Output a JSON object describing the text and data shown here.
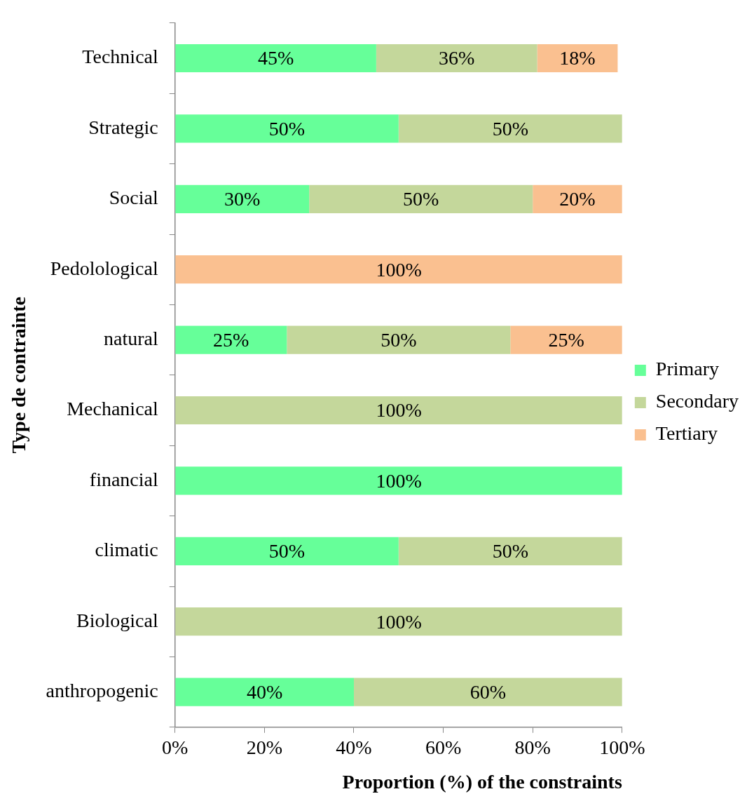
{
  "chart_data": {
    "type": "bar",
    "orientation": "horizontal",
    "stacked": true,
    "xlabel": "Proportion (%) of the constraints",
    "ylabel": "Type de contrainte",
    "categories": [
      "Technical",
      "Strategic",
      "Social",
      "Pedolological",
      "natural",
      "Mechanical",
      "financial",
      "climatic",
      "Biological",
      "anthropogenic"
    ],
    "series": [
      {
        "name": "Primary",
        "color": "#66ff99",
        "values": [
          45,
          50,
          30,
          null,
          25,
          null,
          100,
          50,
          null,
          40
        ],
        "value_labels": [
          "45%",
          "50%",
          "30%",
          null,
          "25%",
          null,
          "100%",
          "50%",
          null,
          "40%"
        ]
      },
      {
        "name": "Secondary",
        "color": "#c4d79b",
        "values": [
          36,
          50,
          50,
          null,
          50,
          100,
          null,
          50,
          100,
          60
        ],
        "value_labels": [
          "36%",
          "50%",
          "50%",
          null,
          "50%",
          "100%",
          null,
          "50%",
          "100%",
          "60%"
        ]
      },
      {
        "name": "Tertiary",
        "color": "#fac090",
        "values": [
          18,
          null,
          20,
          100,
          25,
          null,
          null,
          null,
          null,
          null
        ],
        "value_labels": [
          "18%",
          null,
          "20%",
          "100%",
          "25%",
          null,
          null,
          null,
          null,
          null
        ]
      }
    ],
    "xlim": [
      0,
      100
    ],
    "xticks": [
      {
        "value": 0,
        "label": "0%"
      },
      {
        "value": 20,
        "label": "20%"
      },
      {
        "value": 40,
        "label": "40%"
      },
      {
        "value": 60,
        "label": "60%"
      },
      {
        "value": 80,
        "label": "80%"
      },
      {
        "value": 100,
        "label": "100%"
      }
    ],
    "grid": false,
    "legend": "right"
  }
}
